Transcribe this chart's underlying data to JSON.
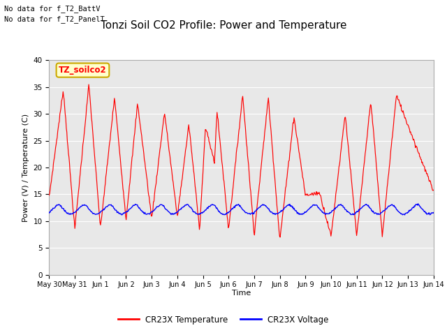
{
  "title": "Tonzi Soil CO2 Profile: Power and Temperature",
  "ylabel": "Power (V) / Temperature (C)",
  "xlabel": "Time",
  "ylim": [
    0,
    40
  ],
  "yticks": [
    0,
    5,
    10,
    15,
    20,
    25,
    30,
    35,
    40
  ],
  "annotation_lines": [
    "No data for f_T2_BattV",
    "No data for f_T2_PanelT"
  ],
  "legend_label_box": "TZ_soilco2",
  "legend_entries": [
    "CR23X Temperature",
    "CR23X Voltage"
  ],
  "temp_color": "red",
  "voltage_color": "blue",
  "plot_bg_color": "#e8e8e8",
  "title_fontsize": 11,
  "label_fontsize": 8,
  "tick_fontsize": 7.5,
  "x_tick_labels": [
    "May 30",
    "May 31",
    "Jun 1",
    "Jun 2",
    "Jun 3",
    "Jun 4",
    "Jun 5",
    "Jun 6",
    "Jun 7",
    "Jun 8",
    "Jun 9",
    "Jun 10",
    "Jun 11",
    "Jun 12",
    "Jun 13",
    "Jun 14"
  ],
  "temp_peaks": [
    14.5,
    34.5,
    8.5,
    35.5,
    8.7,
    33.0,
    10.3,
    32.0,
    10.5,
    30.3,
    10.8,
    28.0,
    8.5,
    27.5,
    21.0,
    30.5,
    8.5,
    33.5,
    7.5,
    33.0,
    6.5,
    29.5,
    14.8,
    15.3,
    7.2,
    30.0,
    7.2,
    32.5,
    7.2,
    33.5,
    15.5
  ],
  "temp_times": [
    0.0,
    0.55,
    1.0,
    1.55,
    2.0,
    2.55,
    3.0,
    3.45,
    4.0,
    4.5,
    5.0,
    5.45,
    5.87,
    6.1,
    6.45,
    6.55,
    7.0,
    7.55,
    8.0,
    8.55,
    9.0,
    9.55,
    10.0,
    10.55,
    11.0,
    11.55,
    12.0,
    12.55,
    13.0,
    13.55,
    15.0
  ],
  "volt_base": 12.0,
  "volt_amp": 0.7
}
